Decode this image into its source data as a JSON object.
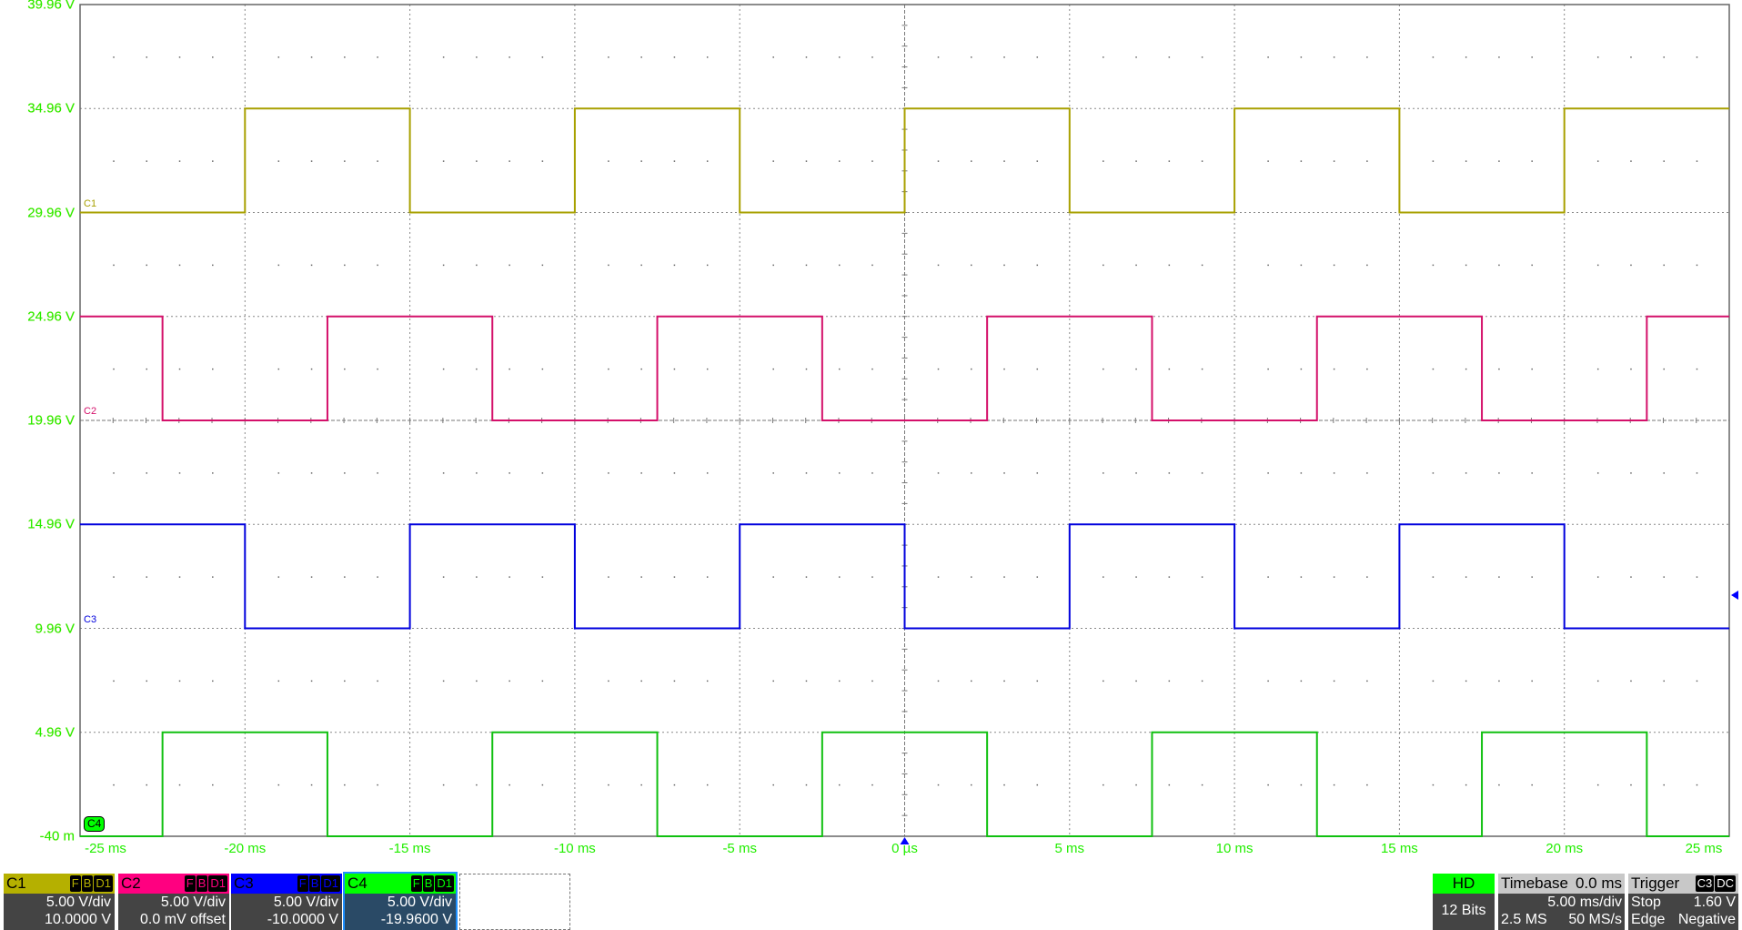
{
  "chart_data": {
    "type": "line",
    "xlabel": "",
    "ylabel": "",
    "x_unit": "ms",
    "xlim": [
      -25,
      25
    ],
    "ylim": [
      -0.04,
      39.96
    ],
    "x_ticks": [
      "-25 ms",
      "-20 ms",
      "-15 ms",
      "-10 ms",
      "-5 ms",
      "0 µs",
      "5 ms",
      "10 ms",
      "15 ms",
      "20 ms",
      "25 ms"
    ],
    "y_ticks": [
      "39.96 V",
      "34.96 V",
      "29.96 V",
      "24.96 V",
      "19.96 V",
      "14.96 V",
      "9.96 V",
      "4.96 V",
      "-40 m"
    ],
    "grid": true,
    "series": [
      {
        "name": "C1",
        "color": "#a8a000",
        "low": 29.96,
        "high": 34.96,
        "start": "low",
        "transitions_ms": [
          -20,
          -15,
          -10,
          -5,
          0,
          5,
          10,
          15,
          20
        ]
      },
      {
        "name": "C2",
        "color": "#d4106a",
        "low": 19.96,
        "high": 24.96,
        "start": "high",
        "transitions_ms": [
          -22.5,
          -17.5,
          -12.5,
          -7.5,
          -2.5,
          2.5,
          7.5,
          12.5,
          17.5,
          22.5
        ]
      },
      {
        "name": "C3",
        "color": "#0000dd",
        "low": 9.96,
        "high": 14.96,
        "start": "high",
        "transitions_ms": [
          -20,
          -15,
          -10,
          -5,
          0,
          5,
          10,
          15,
          20
        ]
      },
      {
        "name": "C4",
        "color": "#10c010",
        "low": -0.04,
        "high": 4.96,
        "start": "low",
        "transitions_ms": [
          -22.5,
          -17.5,
          -12.5,
          -7.5,
          -2.5,
          2.5,
          7.5,
          12.5,
          17.5,
          22.5
        ]
      }
    ],
    "trigger_level_marker_channel": "C3"
  },
  "channels": [
    {
      "label": "C1",
      "color": "#b5b000",
      "tags": [
        "F",
        "B",
        "D1"
      ],
      "scale": "5.00 V/div",
      "offset": "10.0000 V"
    },
    {
      "label": "C2",
      "color": "#ff0080",
      "tags": [
        "F",
        "B",
        "D1"
      ],
      "scale": "5.00 V/div",
      "offset": "0.0 mV offset"
    },
    {
      "label": "C3",
      "color": "#0000ff",
      "tags": [
        "F",
        "B",
        "D1"
      ],
      "scale": "5.00 V/div",
      "offset": "-10.0000 V"
    },
    {
      "label": "C4",
      "color": "#00ff00",
      "tags": [
        "F",
        "B",
        "D1"
      ],
      "scale": "5.00 V/div",
      "offset": "-19.9600 V"
    }
  ],
  "acquisition": {
    "mode": "HD",
    "bits": "12 Bits"
  },
  "timebase": {
    "title": "Timebase",
    "delay": "0.0 ms",
    "scale": "5.00 ms/div",
    "samples": "2.5 MS",
    "rate": "50 MS/s"
  },
  "trigger": {
    "title": "Trigger",
    "source": "C3",
    "coupling": "DC",
    "state": "Stop",
    "level": "1.60 V",
    "type": "Edge",
    "slope": "Negative"
  }
}
